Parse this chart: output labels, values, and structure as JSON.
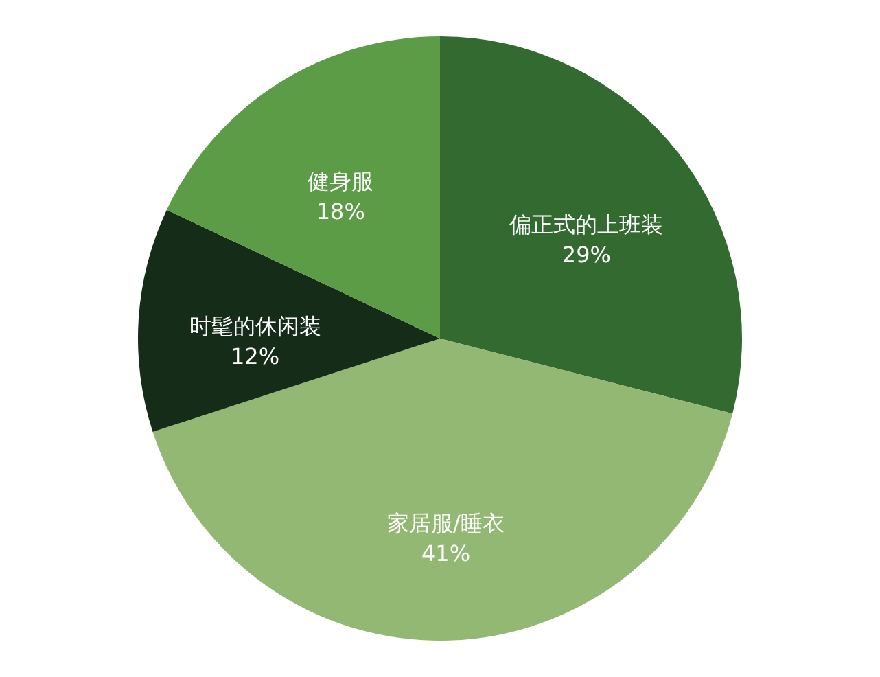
{
  "chart_data": {
    "type": "pie",
    "categories": [
      "偏正式的上班装",
      "家居服/睡衣",
      "时髦的休闲装",
      "健身服"
    ],
    "values": [
      29,
      41,
      12,
      18
    ],
    "value_labels": [
      "29%",
      "41%",
      "12%",
      "18%"
    ],
    "colors": [
      "#336a30",
      "#93b874",
      "#142c18",
      "#5c9c47"
    ]
  }
}
